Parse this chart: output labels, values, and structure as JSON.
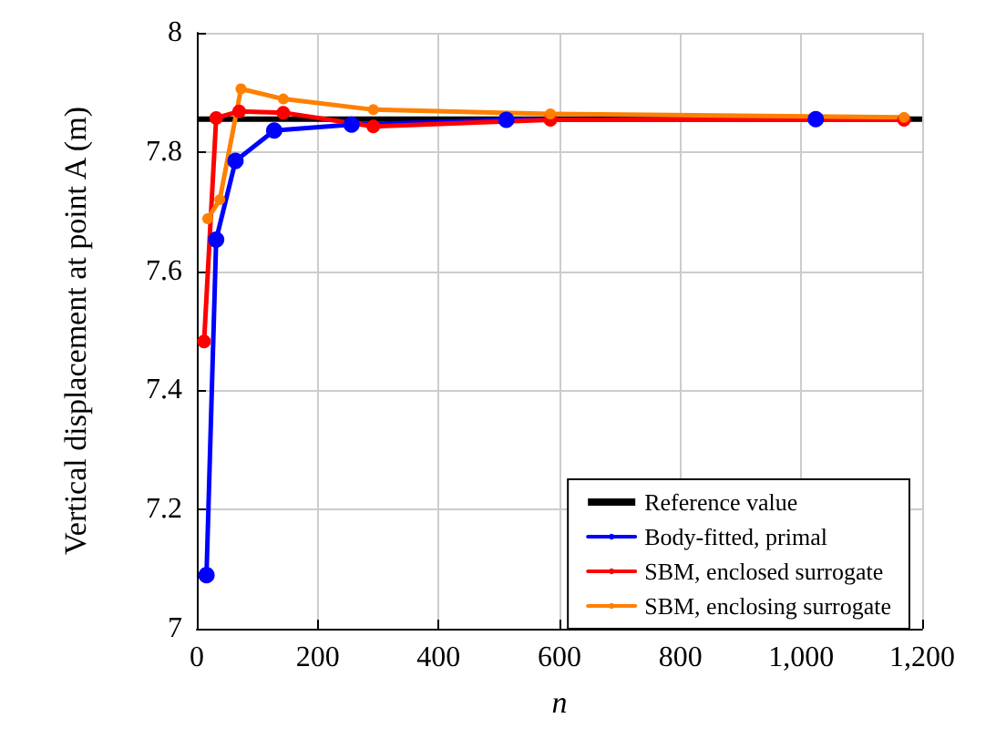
{
  "chart_data": {
    "type": "line",
    "xlabel": "n",
    "ylabel": "Vertical displacement at point A (m)",
    "xlim": [
      0,
      1200
    ],
    "xticks": [
      0,
      200,
      400,
      600,
      800,
      {
        "value": 1000,
        "label": "1,000"
      },
      {
        "value": 1200,
        "label": "1,200"
      }
    ],
    "ylim": [
      7,
      8
    ],
    "yticks": [
      7,
      7.2,
      7.4,
      7.6,
      7.8,
      8
    ],
    "grid": true,
    "legend": "bottom right",
    "marker": "circle",
    "line_style": "solid",
    "ref_lines": [
      {
        "axis": "y",
        "value": 7.855,
        "label": "Reference value",
        "color": "#000000"
      }
    ],
    "series": [
      {
        "name": "Body-fitted, primal",
        "color": "#0000ff",
        "x": [
          16,
          32,
          64,
          128,
          256,
          512,
          1024
        ],
        "values": [
          7.09,
          7.653,
          7.785,
          7.836,
          7.846,
          7.854,
          7.855
        ]
      },
      {
        "name": "SBM, enclosed surrogate",
        "color": "#ff0000",
        "x": [
          12,
          32,
          70,
          143,
          292,
          585,
          1170
        ],
        "values": [
          7.482,
          7.857,
          7.868,
          7.866,
          7.843,
          7.854,
          7.854
        ]
      },
      {
        "name": "SBM, enclosing surrogate",
        "color": "#ff8000",
        "x": [
          18,
          38,
          73,
          143,
          292,
          585,
          1170
        ],
        "values": [
          7.688,
          7.72,
          7.906,
          7.889,
          7.871,
          7.864,
          7.858
        ]
      }
    ]
  }
}
